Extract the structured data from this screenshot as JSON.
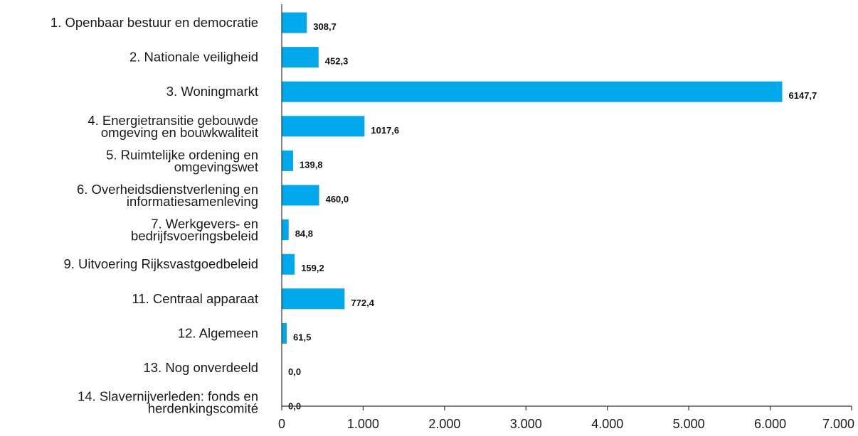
{
  "chart_data": {
    "type": "bar",
    "orientation": "horizontal",
    "categories": [
      [
        "1. Openbaar bestuur en democratie"
      ],
      [
        "2. Nationale veiligheid"
      ],
      [
        "3. Woningmarkt"
      ],
      [
        "4. Energietransitie gebouwde",
        "omgeving en bouwkwaliteit"
      ],
      [
        "5. Ruimtelijke ordening en",
        "omgevingswet"
      ],
      [
        "6. Overheidsdienstverlening en",
        "informatiesamenleving"
      ],
      [
        "7. Werkgevers- en",
        "bedrijfsvoeringsbeleid"
      ],
      [
        "9. Uitvoering Rijksvastgoedbeleid"
      ],
      [
        "11. Centraal apparaat"
      ],
      [
        "12. Algemeen"
      ],
      [
        "13. Nog onverdeeld"
      ],
      [
        "14. Slavernijverleden: fonds en",
        "herdenkingscomité"
      ]
    ],
    "values": [
      308.7,
      452.3,
      6147.7,
      1017.6,
      139.8,
      460.0,
      84.8,
      159.2,
      772.4,
      61.5,
      0.0,
      0.0
    ],
    "value_labels": [
      "308,7",
      "452,3",
      "6147,7",
      "1017,6",
      "139,8",
      "460,0",
      "84,8",
      "159,2",
      "772,4",
      "61,5",
      "0,0",
      "0,0"
    ],
    "xlim": [
      0,
      7000
    ],
    "xticks": [
      0,
      1000,
      2000,
      3000,
      4000,
      5000,
      6000,
      7000
    ],
    "xtick_labels": [
      "0",
      "1.000",
      "2.000",
      "3.000",
      "4.000",
      "5.000",
      "6.000",
      "7.000"
    ],
    "title": "",
    "xlabel": "",
    "ylabel": "",
    "grid": false,
    "bar_color": "#00a9ec",
    "axis_color": "#333333"
  }
}
